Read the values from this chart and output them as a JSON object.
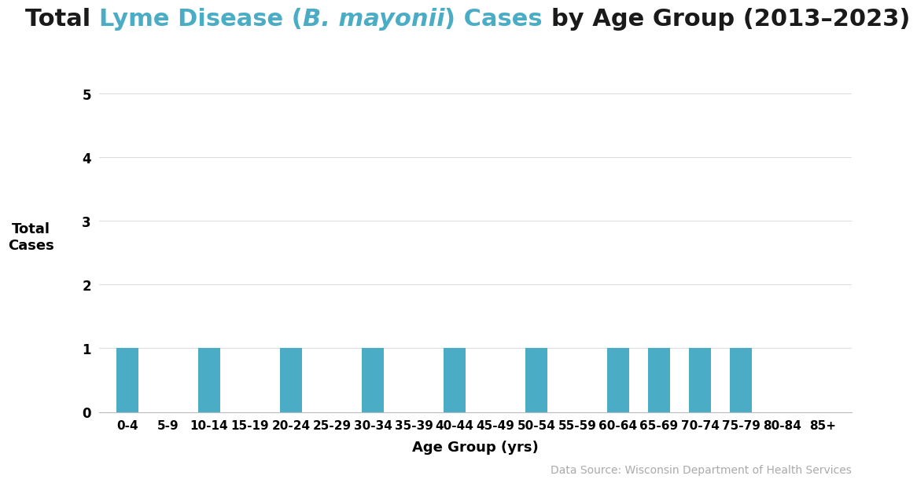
{
  "age_groups": [
    "0-4",
    "5-9",
    "10-14",
    "15-19",
    "20-24",
    "25-29",
    "30-34",
    "35-39",
    "40-44",
    "45-49",
    "50-54",
    "55-59",
    "60-64",
    "65-69",
    "70-74",
    "75-79",
    "80-84",
    "85+"
  ],
  "values": [
    1,
    0,
    1,
    0,
    1,
    0,
    1,
    0,
    1,
    0,
    1,
    0,
    1,
    1,
    1,
    1,
    0,
    0
  ],
  "bar_color": "#4BACC6",
  "xlabel": "Age Group (yrs)",
  "ylabel_line1": "Total",
  "ylabel_line2": "Cases",
  "ylim": [
    0,
    5.5
  ],
  "yticks": [
    0,
    1,
    2,
    3,
    4,
    5
  ],
  "background_color": "#ffffff",
  "bar_edge_color": "none",
  "title_color_main": "#1a1a1a",
  "title_color_highlight": "#4BACC6",
  "source_text": "Data Source: Wisconsin Department of Health Services",
  "source_color": "#aaaaaa",
  "title_fontsize": 22,
  "axis_label_fontsize": 13,
  "tick_fontsize": 11,
  "source_fontsize": 10,
  "title_segments": [
    {
      "text": "Total ",
      "color": "#1a1a1a",
      "italic": false
    },
    {
      "text": "Lyme Disease (",
      "color": "#4BACC6",
      "italic": false
    },
    {
      "text": "B. mayonii",
      "color": "#4BACC6",
      "italic": true
    },
    {
      "text": ") Cases ",
      "color": "#4BACC6",
      "italic": false
    },
    {
      "text": "by Age Group (2013–2023)",
      "color": "#1a1a1a",
      "italic": false
    }
  ]
}
